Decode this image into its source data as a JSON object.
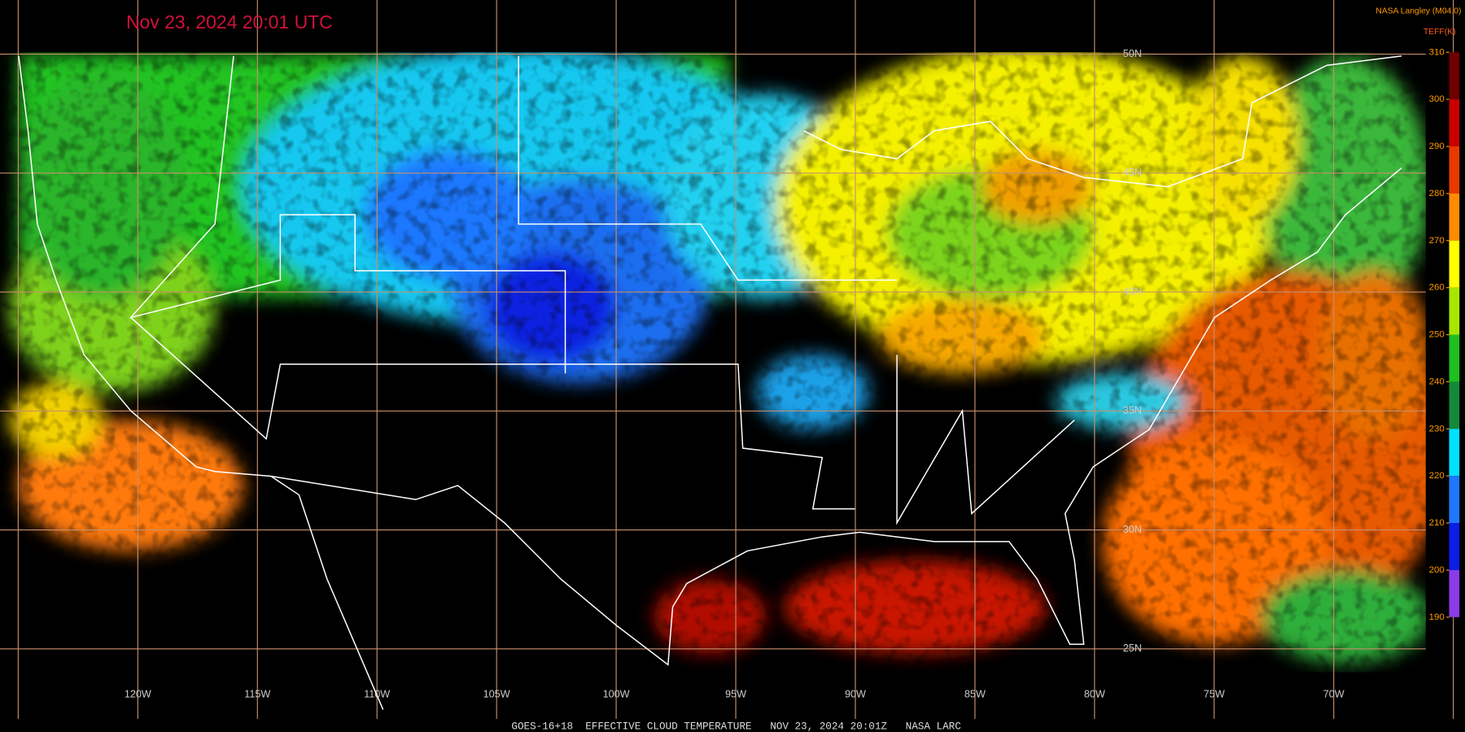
{
  "timestamp": "Nov 23, 2024 20:01 UTC",
  "credit": "NASA Langley (M04.0)",
  "caption": "GOES-16+18  EFFECTIVE CLOUD TEMPERATURE   NOV 23, 2024 20:01Z   NASA LARC",
  "colorbar": {
    "label": "TEFF(K)",
    "range": [
      190,
      310
    ],
    "ticks": [
      310,
      300,
      290,
      280,
      270,
      260,
      250,
      240,
      230,
      220,
      210,
      200,
      190
    ],
    "colors": [
      "#6e0000",
      "#c80000",
      "#e83a00",
      "#ff8c00",
      "#ffff00",
      "#a8e600",
      "#1fbf1f",
      "#138a3a",
      "#00e0ff",
      "#1e78ff",
      "#0a1ee6",
      "#8a3ce6"
    ]
  },
  "lon_labels": [
    "120W",
    "115W",
    "110W",
    "105W",
    "100W",
    "95W",
    "90W",
    "85W",
    "80W",
    "75W",
    "70W"
  ],
  "lat_labels": [
    "50N",
    "45N",
    "40N",
    "35N",
    "30N",
    "25N"
  ]
}
